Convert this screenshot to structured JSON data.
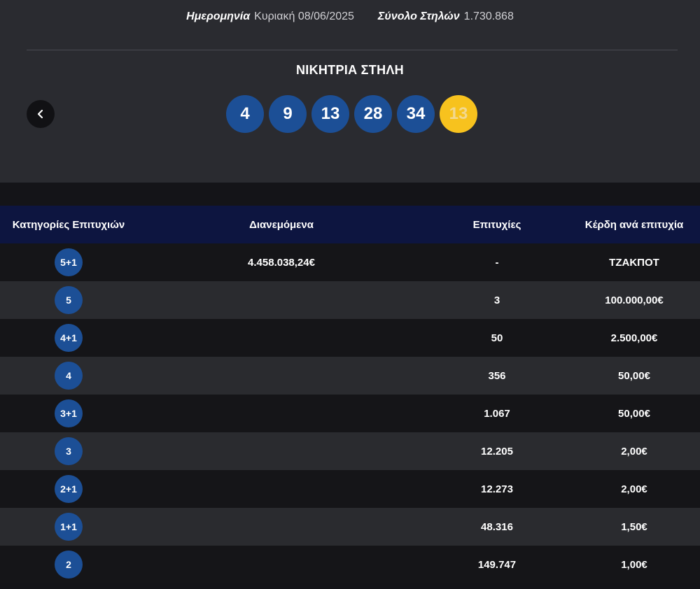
{
  "header": {
    "date_label": "Ημερομηνία",
    "date_value": "Κυριακή 08/06/2025",
    "columns_label": "Σύνολο Στηλών",
    "columns_value": "1.730.868"
  },
  "winning_column": {
    "title": "ΝΙΚΗΤΡΙΑ ΣΤΗΛΗ",
    "numbers": [
      "4",
      "9",
      "13",
      "28",
      "34"
    ],
    "bonus": "13",
    "prev_icon": "chevron-left-icon"
  },
  "table": {
    "headers": {
      "category": "Κατηγορίες Επιτυχιών",
      "distributed": "Διανεμόμενα",
      "winners": "Επιτυχίες",
      "prize": "Κέρδη ανά επιτυχία"
    },
    "rows": [
      {
        "category": "5+1",
        "distributed": "4.458.038,24€",
        "winners": "-",
        "prize": "ΤΖΑΚΠΟΤ"
      },
      {
        "category": "5",
        "distributed": "",
        "winners": "3",
        "prize": "100.000,00€"
      },
      {
        "category": "4+1",
        "distributed": "",
        "winners": "50",
        "prize": "2.500,00€"
      },
      {
        "category": "4",
        "distributed": "",
        "winners": "356",
        "prize": "50,00€"
      },
      {
        "category": "3+1",
        "distributed": "",
        "winners": "1.067",
        "prize": "50,00€"
      },
      {
        "category": "3",
        "distributed": "",
        "winners": "12.205",
        "prize": "2,00€"
      },
      {
        "category": "2+1",
        "distributed": "",
        "winners": "12.273",
        "prize": "2,00€"
      },
      {
        "category": "1+1",
        "distributed": "",
        "winners": "48.316",
        "prize": "1,50€"
      },
      {
        "category": "2",
        "distributed": "",
        "winners": "149.747",
        "prize": "1,00€"
      }
    ]
  },
  "colors": {
    "ball_blue": "#1c4f96",
    "bonus_yellow": "#f7c21e",
    "header_navy": "#0d1540",
    "panel_gray": "#2a2b30"
  }
}
